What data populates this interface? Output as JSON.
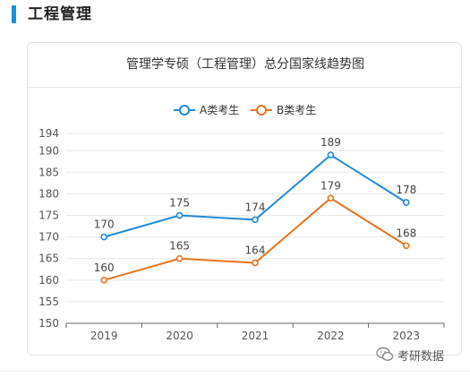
{
  "section": {
    "title": "工程管理",
    "accent_color": "#1a8fe0"
  },
  "card": {
    "title": "管理学专硕（工程管理）总分国家线趋势图"
  },
  "watermark": {
    "label": "考研数据",
    "icon": "wechat-icon"
  },
  "chart_data": {
    "type": "line",
    "title": "管理学专硕（工程管理）总分国家线趋势图",
    "categories": [
      "2019",
      "2020",
      "2021",
      "2022",
      "2023"
    ],
    "series": [
      {
        "name": "A类考生",
        "color": "#1f8ad9",
        "values": [
          170,
          175,
          174,
          189,
          178
        ]
      },
      {
        "name": "B类考生",
        "color": "#e8731e",
        "values": [
          160,
          165,
          164,
          179,
          168
        ]
      }
    ],
    "yticks": [
      150,
      155,
      160,
      165,
      170,
      175,
      180,
      185,
      190,
      194
    ],
    "ylim": [
      150,
      194
    ],
    "grid": true,
    "legend": "top-center",
    "data_labels": true
  }
}
